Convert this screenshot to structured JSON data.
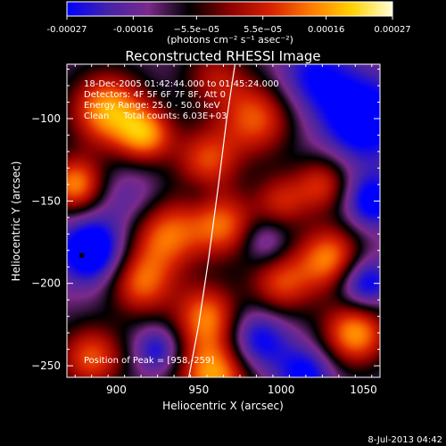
{
  "chart_data": {
    "type": "heatmap",
    "title": "Reconstructed RHESSI Image",
    "xlabel": "Heliocentric X (arcsec)",
    "ylabel": "Heliocentric Y (arcsec)",
    "xlim": [
      870,
      1060
    ],
    "ylim": [
      -257,
      -67
    ],
    "x_ticks": [
      900,
      950,
      1000,
      1050
    ],
    "y_ticks": [
      -100,
      -150,
      -200,
      -250
    ],
    "colorbar": {
      "range": [
        -0.00027,
        0.00027
      ],
      "tick_values": [
        -0.00027,
        -0.00016,
        -5.5e-05,
        5.5e-05,
        0.00016,
        0.00027
      ],
      "tick_labels": [
        "-0.00027",
        "-0.00016",
        "−5.5e−05",
        "5.5e−05",
        "0.00016",
        "0.00027"
      ],
      "unit_label": "(photons cm⁻² s⁻¹ asec⁻²)",
      "colormap": [
        "#0000ff",
        "#4422aa",
        "#7a2a8a",
        "#000000",
        "#8b0000",
        "#d62000",
        "#ff7a00",
        "#ffd200",
        "#ffffd8"
      ]
    },
    "annotations": {
      "time_range": "18-Dec-2005 01:42:44.000 to 01:45:24.000",
      "detectors": "Detectors: 4F 5F 6F 7F 8F, Att 0",
      "energy_range": "Energy Range: 25.0 - 50.0 keV",
      "clean_line": "Clean     Total counts: 6.03E+03",
      "peak_position": "Position of Peak = [958,-259]"
    },
    "limb_curve": [
      [
        944,
        -257
      ],
      [
        950,
        -225
      ],
      [
        956,
        -185
      ],
      [
        962,
        -140
      ],
      [
        967,
        -100
      ],
      [
        972,
        -67
      ]
    ],
    "peak": [
      958,
      -259
    ],
    "marker": [
      879,
      -183
    ],
    "sources": [
      {
        "x": 895,
        "y": -95,
        "r": 16,
        "v": 0.00027
      },
      {
        "x": 918,
        "y": -110,
        "r": 12,
        "v": 0.00022
      },
      {
        "x": 875,
        "y": -140,
        "r": 12,
        "v": 0.00024
      },
      {
        "x": 955,
        "y": -125,
        "r": 14,
        "v": 0.00018
      },
      {
        "x": 985,
        "y": -100,
        "r": 16,
        "v": 0.0002
      },
      {
        "x": 1000,
        "y": -150,
        "r": 12,
        "v": 0.00014
      },
      {
        "x": 930,
        "y": -170,
        "r": 16,
        "v": 0.00022
      },
      {
        "x": 965,
        "y": -165,
        "r": 14,
        "v": 0.0002
      },
      {
        "x": 1030,
        "y": -185,
        "r": 14,
        "v": 0.00024
      },
      {
        "x": 1000,
        "y": -200,
        "r": 14,
        "v": 0.00018
      },
      {
        "x": 915,
        "y": -200,
        "r": 14,
        "v": 0.0002
      },
      {
        "x": 955,
        "y": -220,
        "r": 14,
        "v": 0.00022
      },
      {
        "x": 1045,
        "y": -230,
        "r": 14,
        "v": 0.00026
      },
      {
        "x": 885,
        "y": -245,
        "r": 14,
        "v": 0.0002
      },
      {
        "x": 960,
        "y": -255,
        "r": 16,
        "v": 0.00027
      },
      {
        "x": 1025,
        "y": -140,
        "r": 12,
        "v": 0.00016
      },
      {
        "x": 960,
        "y": -75,
        "r": 14,
        "v": 0.00012
      },
      {
        "x": 910,
        "y": -150,
        "r": 14,
        "v": -0.0001
      },
      {
        "x": 885,
        "y": -180,
        "r": 14,
        "v": -0.00026
      },
      {
        "x": 990,
        "y": -175,
        "r": 10,
        "v": -0.00012
      },
      {
        "x": 1050,
        "y": -100,
        "r": 18,
        "v": -0.00024
      },
      {
        "x": 1055,
        "y": -150,
        "r": 12,
        "v": -0.0002
      },
      {
        "x": 1050,
        "y": -200,
        "r": 12,
        "v": -0.00022
      },
      {
        "x": 985,
        "y": -235,
        "r": 14,
        "v": -0.0002
      },
      {
        "x": 925,
        "y": -240,
        "r": 10,
        "v": -0.00016
      },
      {
        "x": 1015,
        "y": -255,
        "r": 12,
        "v": -0.00018
      },
      {
        "x": 1020,
        "y": -75,
        "r": 16,
        "v": -0.00016
      },
      {
        "x": 950,
        "y": -145,
        "r": 8,
        "v": -6e-05
      }
    ]
  },
  "footer_timestamp": "8-Jul-2013 04:42"
}
